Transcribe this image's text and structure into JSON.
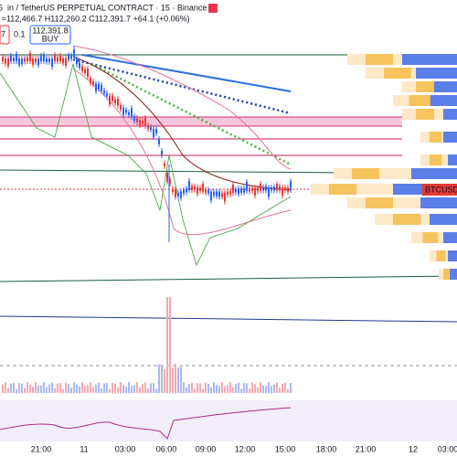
{
  "header": {
    "symbol": "in / TetherUS PERPETUAL CONTRACT · 15 · Binance",
    "ohlc": "≈112,466.7 H112,260.2 C112,391.7 +64.1 (+0.06%)",
    "prefix": "5"
  },
  "order": {
    "sell_price": "7",
    "qty": "0.1",
    "buy_price": "112,391.8",
    "buy_label": "BUY"
  },
  "price_label": "BTCUSDT.P",
  "time_axis": [
    "21:00",
    "11",
    "03:00",
    "06:00",
    "09:00",
    "12:00",
    "15:00",
    "18:00",
    "21:00",
    "12",
    "03:00"
  ]
}
